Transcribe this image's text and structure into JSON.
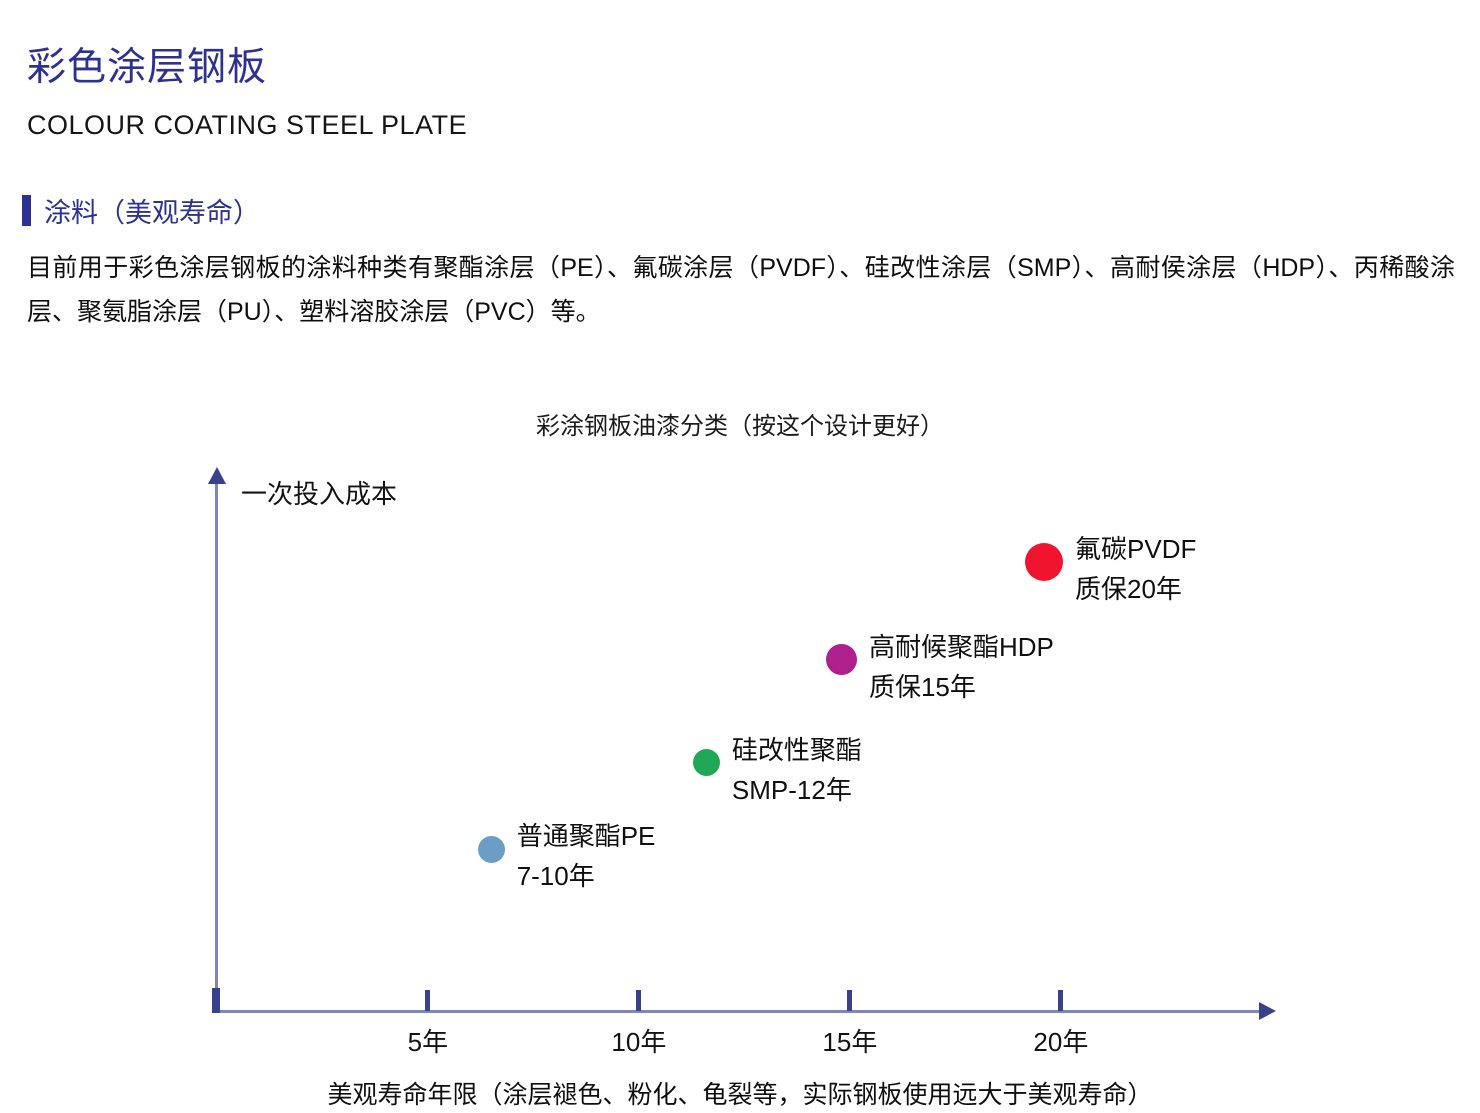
{
  "header": {
    "title": "彩色涂层钢板",
    "subtitle": "COLOUR COATING STEEL PLATE",
    "section_heading": "涂料（美观寿命）"
  },
  "intro": {
    "text": "目前用于彩色涂层钢板的涂料种类有聚酯涂层（PE）、氟碳涂层（PVDF）、硅改性涂层（SMP）、高耐侯涂层（HDP）、丙稀酸涂层、聚氨脂涂层（PU）、塑料溶胶涂层（PVC）等。"
  },
  "colors": {
    "heading_blue": "#2E3192",
    "axis_line": "#7E86BB",
    "axis_dark": "#39418D"
  },
  "chart_data": {
    "type": "scatter",
    "title": "彩涂钢板油漆分类（按这个设计更好）",
    "ylabel": "一次投入成本",
    "xlabel": "美观寿命年限（涂层褪色、粉化、龟裂等，实际钢板使用远大于美观寿命）",
    "x_unit": "年",
    "xlim": [
      0,
      25
    ],
    "y_axis_note": "无刻度，表示相对一次投入成本",
    "grid": false,
    "x_ticks": [
      {
        "value": 5,
        "label": "5年"
      },
      {
        "value": 10,
        "label": "10年"
      },
      {
        "value": 15,
        "label": "15年"
      },
      {
        "value": 20,
        "label": "20年"
      }
    ],
    "points": [
      {
        "line1": "普通聚酯PE",
        "line2": "7-10年",
        "x_years": 6.5,
        "y_cost_rel": 0.3,
        "color": "#6C9DC4",
        "size": 27
      },
      {
        "line1": "硅改性聚酯",
        "line2": "SMP-12年",
        "x_years": 11.6,
        "y_cost_rel": 0.46,
        "color": "#21A857",
        "size": 27
      },
      {
        "line1": "高耐候聚酯HDP",
        "line2": "质保15年",
        "x_years": 14.8,
        "y_cost_rel": 0.65,
        "color": "#B01F8E",
        "size": 31
      },
      {
        "line1": "氟碳PVDF",
        "line2": "质保20年",
        "x_years": 19.6,
        "y_cost_rel": 0.83,
        "color": "#F0142F",
        "size": 38
      }
    ]
  }
}
